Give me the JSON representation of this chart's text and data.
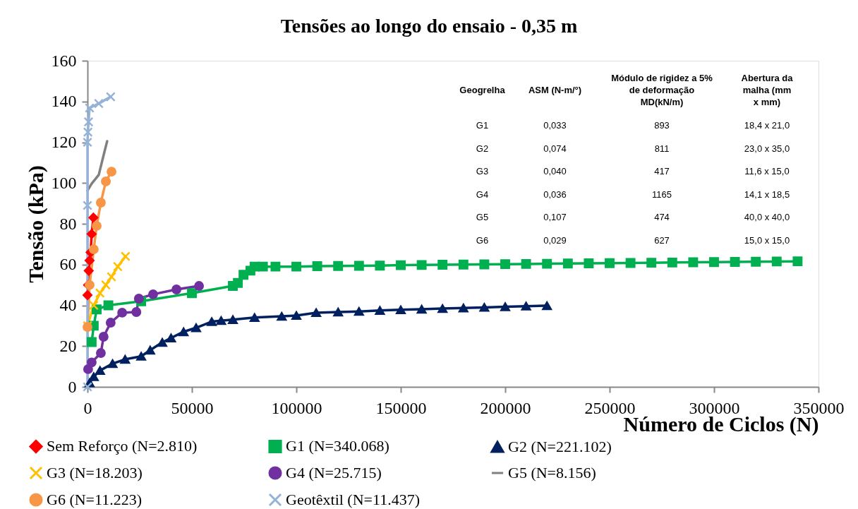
{
  "chart_data": {
    "type": "line",
    "title": "Tensões ao longo do ensaio - 0,35 m",
    "xlabel": "Número de Ciclos (N)",
    "ylabel": "Tensão (kPa)",
    "xlim": [
      0,
      350000
    ],
    "xticks": [
      0,
      50000,
      100000,
      150000,
      200000,
      250000,
      300000,
      350000
    ],
    "ylim": [
      0,
      160
    ],
    "yticks": [
      0,
      20,
      40,
      60,
      80,
      100,
      120,
      140,
      160
    ],
    "legend": "bottom",
    "line_style": "solid",
    "series": [
      {
        "name": "Sem Reforço (N=2.810)",
        "color": "#ff0000",
        "marker": "diamond",
        "x": [
          0,
          300,
          600,
          1000,
          1500,
          2000,
          2810
        ],
        "values": [
          45,
          50,
          57,
          62,
          66,
          75,
          83
        ]
      },
      {
        "name": "G1 (N=340.068)",
        "color": "#00b050",
        "marker": "square",
        "x": [
          2000,
          3000,
          4400,
          10000,
          25700,
          50000,
          69600,
          72000,
          74700,
          78000,
          80000,
          84000,
          90000,
          100000,
          110000,
          120000,
          130000,
          140000,
          150000,
          160000,
          170000,
          180000,
          190000,
          200000,
          210000,
          220000,
          230000,
          240000,
          250000,
          260000,
          270000,
          280000,
          290000,
          300000,
          310000,
          320000,
          330000,
          340000
        ],
        "values": [
          22,
          30,
          38,
          40,
          42,
          46,
          49.5,
          51,
          55,
          57,
          59,
          59,
          59,
          59,
          59.2,
          59.3,
          59.4,
          59.5,
          59.7,
          59.8,
          59.9,
          60,
          60.1,
          60.2,
          60.3,
          60.4,
          60.5,
          60.6,
          60.7,
          60.8,
          60.9,
          61,
          61.1,
          61.2,
          61.3,
          61.4,
          61.5,
          61.6
        ]
      },
      {
        "name": "G2 (N=221.102)",
        "color": "#002060",
        "marker": "triangle",
        "x": [
          1000,
          3000,
          6000,
          12000,
          18000,
          25700,
          30000,
          35800,
          40000,
          46000,
          52000,
          59500,
          64000,
          69600,
          80000,
          93000,
          100000,
          109500,
          120000,
          130000,
          140000,
          150000,
          160000,
          170000,
          180000,
          190000,
          200000,
          210000,
          220000
        ],
        "values": [
          2,
          5,
          8,
          11.4,
          13.5,
          15,
          18,
          21.8,
          24,
          27,
          29,
          32,
          32.5,
          33,
          34,
          34.6,
          35,
          36.4,
          36.7,
          37,
          37.5,
          37.8,
          38.1,
          38.4,
          38.7,
          39,
          39.3,
          39.6,
          39.8
        ]
      },
      {
        "name": "G3 (N=18.203)",
        "color": "#ffc000",
        "marker": "cross",
        "x": [
          0,
          3000,
          6000,
          8800,
          11500,
          14500,
          18200
        ],
        "values": [
          30,
          40,
          46,
          50,
          54,
          59,
          64
        ]
      },
      {
        "name": "G4 (N=25.715)",
        "color": "#7030a0",
        "marker": "circle",
        "x": [
          300,
          2000,
          6400,
          7700,
          11100,
          16600,
          23400,
          24600,
          31400,
          42600,
          53400
        ],
        "values": [
          8.7,
          12,
          16.6,
          24.6,
          31.5,
          36.4,
          36.7,
          43.3,
          45.4,
          47.8,
          49.5
        ]
      },
      {
        "name": "G5 (N=8.156)",
        "color": "#808080",
        "marker": "none",
        "x": [
          0,
          2000,
          5400,
          7700,
          9400
        ],
        "values": [
          96.3,
          99.7,
          104,
          113.6,
          120.5
        ]
      },
      {
        "name": "G6 (N=11.223)",
        "color": "#f79646",
        "marker": "circle",
        "x": [
          0,
          1000,
          3000,
          4400,
          6400,
          8800,
          11500
        ],
        "values": [
          29.4,
          50,
          67.5,
          79,
          90.4,
          100.8,
          105.6
        ]
      },
      {
        "name": "Geotêxtil (N=11.437)",
        "color": "#95b3d7",
        "marker": "cross",
        "x": [
          0,
          0,
          0,
          200,
          500,
          1000,
          5400,
          11100
        ],
        "values": [
          0,
          89,
          120,
          125,
          130,
          136.8,
          139,
          142.3
        ]
      }
    ],
    "annotations": [
      "Geogrelha",
      "ASM (N-m/°)",
      "Módulo de rigidez a 5%\nde deformação\nMD(kN/m)",
      "Abertura da\nmalha (mm\nx mm)",
      "G1",
      "0,033",
      "893",
      "18,4 x 21,0",
      "G2",
      "0,074",
      "811",
      "23,0 x 35,0",
      "G3",
      "0,040",
      "417",
      "11,6 x 15,0",
      "G4",
      "0,036",
      "1165",
      "14,1 x 18,5",
      "G5",
      "0,107",
      "474",
      "40,0 x 40,0",
      "G6",
      "0,029",
      "627",
      "15,0 x 15,0"
    ]
  }
}
